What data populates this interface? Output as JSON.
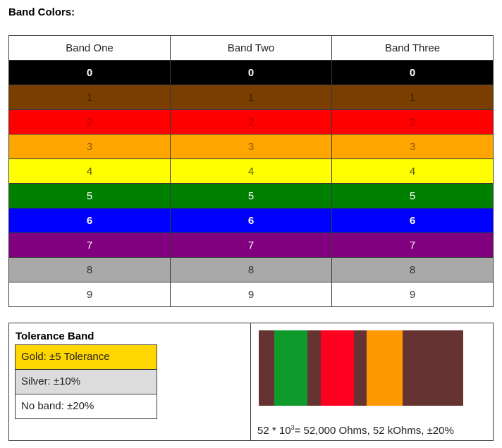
{
  "heading": "Band Colors:",
  "table": {
    "headers": [
      "Band One",
      "Band Two",
      "Band Three"
    ],
    "rows": [
      {
        "value": "0",
        "bg": "#000000",
        "fg": "#ffffff",
        "bold": true
      },
      {
        "value": "1",
        "bg": "#7a3f00",
        "fg": "#3a1e00",
        "bold": false
      },
      {
        "value": "2",
        "bg": "#ff0000",
        "fg": "#b00000",
        "bold": false
      },
      {
        "value": "3",
        "bg": "#ffa500",
        "fg": "#8a5a00",
        "bold": false
      },
      {
        "value": "4",
        "bg": "#ffff00",
        "fg": "#555500",
        "bold": false
      },
      {
        "value": "5",
        "bg": "#008000",
        "fg": "#ffffff",
        "bold": false
      },
      {
        "value": "6",
        "bg": "#0000ff",
        "fg": "#ffffff",
        "bold": true
      },
      {
        "value": "7",
        "bg": "#800080",
        "fg": "#ffffff",
        "bold": false
      },
      {
        "value": "8",
        "bg": "#a9a9a9",
        "fg": "#333333",
        "bold": false
      },
      {
        "value": "9",
        "bg": "#ffffff",
        "fg": "#333333",
        "bold": false
      }
    ]
  },
  "tolerance": {
    "title": "Tolerance Band",
    "items": [
      {
        "label": "Gold: ±5 Tolerance",
        "bg": "#ffd700"
      },
      {
        "label": "Silver: ±10%",
        "bg": "#dcdcdc"
      },
      {
        "label": "No band: ±20%",
        "bg": "#ffffff"
      }
    ]
  },
  "resistor": {
    "body_color": "#663333",
    "stripes": [
      {
        "name": "band-one",
        "color": "#0f9a2c"
      },
      {
        "name": "band-two",
        "color": "#ff0020"
      },
      {
        "name": "band-three",
        "color": "#ff9900"
      }
    ]
  },
  "result": {
    "prefix": "52 * 10",
    "exponent": "3",
    "suffix": "= 52,000 Ohms, 52 kOhms, ±20%"
  }
}
